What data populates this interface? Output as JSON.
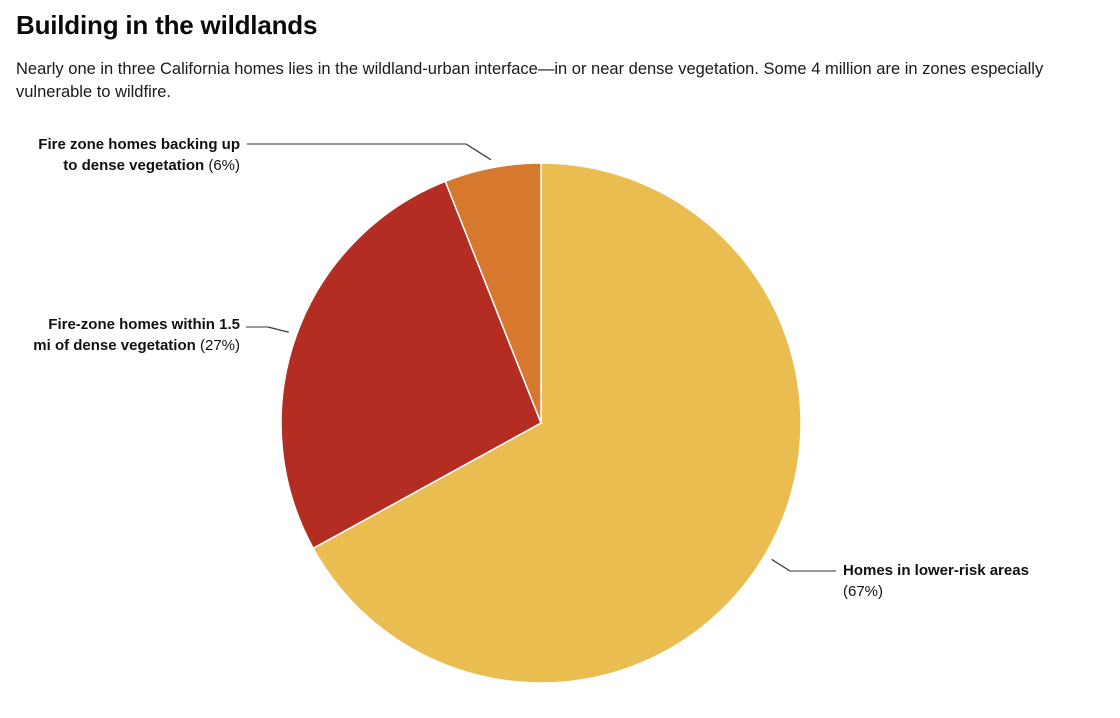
{
  "header": {
    "title": "Building in the wildlands",
    "subtitle": "Nearly one in three California homes lies in the wildland-urban interface—in or near dense vegetation. Some 4 million are in zones especially vulnerable to wildfire."
  },
  "colors": {
    "background": "#FFFFFF",
    "title_text": "#0A0A0A",
    "body_text": "#1A1A1A",
    "label_text": "#111111",
    "slice_stroke": "#FFFFFF",
    "leader_light": "#999999",
    "leader_dark": "#3A3A3A"
  },
  "chart_data": {
    "type": "pie",
    "title": "Building in the wildlands",
    "start_angle_deg": 0,
    "direction": "clockwise",
    "legend": "none",
    "values_are": "percent",
    "total": 100,
    "slices": [
      {
        "slug": "lower-risk",
        "label": "Homes in lower-risk areas",
        "pct_label": "(67%)",
        "value": 67,
        "color": "#EABD51",
        "label_lines": [
          {
            "b": "Homes in lower-risk areas"
          },
          {
            "r": "(67%)"
          }
        ]
      },
      {
        "slug": "fire-zone-within-1-5mi",
        "label": "Fire-zone homes within 1.5 mi of dense vegetation",
        "pct_label": "(27%)",
        "value": 27,
        "color": "#B42D22",
        "label_lines": [
          {
            "b": "Fire-zone homes within 1.5"
          },
          {
            "b": "mi of dense vegetation",
            "r": " (27%)"
          }
        ]
      },
      {
        "slug": "fire-zone-backing-up",
        "label": "Fire zone homes backing up to dense vegetation",
        "pct_label": "(6%)",
        "value": 6,
        "color": "#D6792F",
        "label_lines": [
          {
            "b": "Fire zone homes backing up"
          },
          {
            "b": "to dense vegetation",
            "r": " (6%)"
          }
        ]
      }
    ]
  }
}
